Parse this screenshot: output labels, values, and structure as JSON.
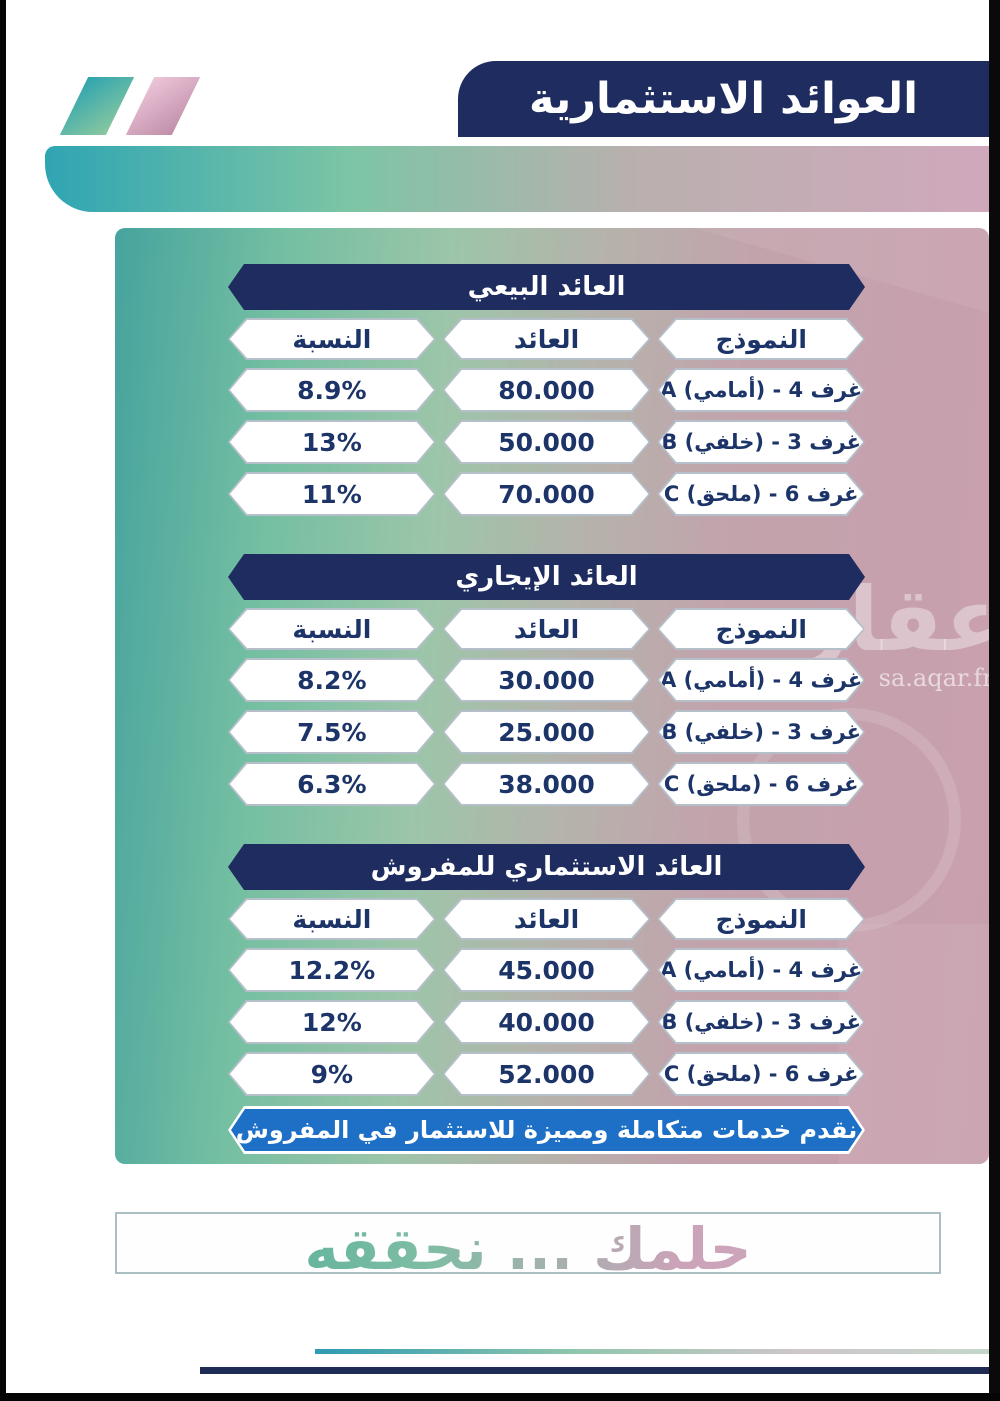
{
  "header": {
    "title": "العوائد الاستثمارية"
  },
  "watermark": {
    "brand": "عقار",
    "site": "sa.aqar.fm"
  },
  "columns": {
    "percent": "النسبة",
    "return": "العائد",
    "model": "النموذج"
  },
  "tables": [
    {
      "title": "العائد البيعي",
      "rows": [
        {
          "percent": "8.9%",
          "return": "80.000",
          "model": "A (أمامي)‎ - 4 غرف"
        },
        {
          "percent": "13%",
          "return": "50.000",
          "model": "B (خلفي)‎ - 3 غرف"
        },
        {
          "percent": "11%",
          "return": "70.000",
          "model": "C (ملحق)‎ - 6 غرف"
        }
      ]
    },
    {
      "title": "العائد الإيجاري",
      "rows": [
        {
          "percent": "8.2%",
          "return": "30.000",
          "model": "A (أمامي)‎ - 4 غرف"
        },
        {
          "percent": "7.5%",
          "return": "25.000",
          "model": "B (خلفي)‎ - 3 غرف"
        },
        {
          "percent": "6.3%",
          "return": "38.000",
          "model": "C (ملحق)‎ - 6 غرف"
        }
      ]
    },
    {
      "title": "العائد الاستثماري للمفروش",
      "rows": [
        {
          "percent": "12.2%",
          "return": "45.000",
          "model": "A (أمامي)‎ - 4 غرف"
        },
        {
          "percent": "12%",
          "return": "40.000",
          "model": "B (خلفي)‎ - 3 غرف"
        },
        {
          "percent": "9%",
          "return": "52.000",
          "model": "C (ملحق)‎ - 6 غرف"
        }
      ]
    }
  ],
  "services_banner": {
    "text": "نقدم خدمات متكاملة ومميزة للاستثمار في المفروش"
  },
  "slogan": {
    "text": "حلمك ... نحققه"
  },
  "colors": {
    "navy": "#1e2c60",
    "banner_blue": "#1d70c6",
    "text_navy": "#1c3468",
    "teal": "#2fa5b2",
    "pink": "#d0a8bc",
    "navy_line": "#1d2b55"
  }
}
